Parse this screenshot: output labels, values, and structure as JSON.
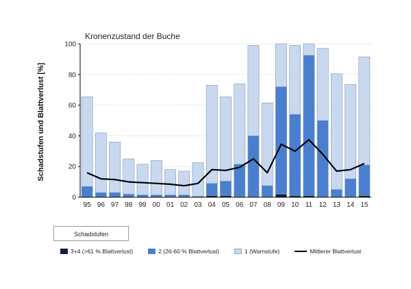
{
  "chart_data": {
    "type": "bar",
    "title": "Kronenzustand der Buche",
    "ylabel": "Schadstufen und Blattverlust [%]",
    "xlabel": "",
    "ylim": [
      0,
      100
    ],
    "yticks": [
      0,
      20,
      40,
      60,
      80,
      100
    ],
    "grid": true,
    "stacked": true,
    "categories": [
      "95",
      "96",
      "97",
      "98",
      "99",
      "00",
      "01",
      "02",
      "03",
      "04",
      "05",
      "06",
      "07",
      "08",
      "09",
      "10",
      "11",
      "12",
      "13",
      "14",
      "15"
    ],
    "series": [
      {
        "name": "3+4 (>61 % Blattverlust)",
        "color": "#0f1f3d",
        "values": [
          0,
          0,
          0,
          0,
          0,
          0,
          0,
          0,
          0.5,
          1,
          1,
          0,
          0,
          0,
          2,
          1,
          1,
          0,
          0,
          0,
          1
        ]
      },
      {
        "name": "2 (26-60 % Blattverlust)",
        "color": "#4a7fd0",
        "values": [
          7,
          3,
          3,
          2,
          1.5,
          1.5,
          1.5,
          1.5,
          0,
          8,
          9.5,
          21.5,
          40,
          7.5,
          70,
          53,
          91.5,
          50,
          5,
          12,
          20
        ]
      },
      {
        "name": "1 (Warnstufe)",
        "color": "#c8d8ef",
        "values": [
          58.5,
          39,
          33,
          23,
          20,
          22.5,
          16.5,
          15.5,
          22,
          64,
          55,
          52.5,
          59,
          54,
          28,
          45,
          7.5,
          47,
          75.5,
          61.5,
          70.5
        ]
      }
    ],
    "line": {
      "name": "Mittlerer Blattverlust",
      "color": "#000000",
      "values": [
        16,
        12,
        11.5,
        10,
        9.5,
        9,
        8.5,
        7.5,
        9,
        18,
        17.5,
        19.5,
        25,
        16,
        34.5,
        30,
        37.5,
        28,
        17,
        18,
        22
      ]
    },
    "legend_position": "bottom"
  },
  "legend": {
    "header": "Schadstufen",
    "items": [
      {
        "label": "3+4 (>61 % Blattverlust)"
      },
      {
        "label": "2 (26-60 % Blattverlust)"
      },
      {
        "label": "1 (Warnstufe)"
      },
      {
        "label": "Mittlerer Blattverlust"
      }
    ]
  }
}
